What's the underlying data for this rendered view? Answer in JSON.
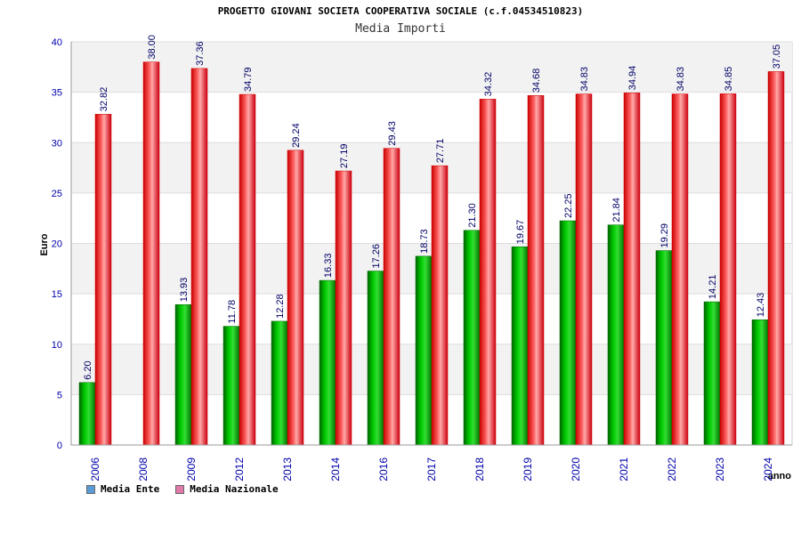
{
  "title": "PROGETTO GIOVANI SOCIETA COOPERATIVA SOCIALE (c.f.04534510823)",
  "subtitle": "Media Importi",
  "chart_data": {
    "type": "bar",
    "title": "PROGETTO GIOVANI SOCIETA COOPERATIVA SOCIALE (c.f.04534510823)",
    "subtitle": "Media Importi",
    "xlabel": "anno",
    "ylabel": "Euro",
    "ylim": [
      0,
      40
    ],
    "yticks": [
      0,
      5,
      10,
      15,
      20,
      25,
      30,
      35,
      40
    ],
    "categories": [
      "2006",
      "2008",
      "2009",
      "2012",
      "2013",
      "2014",
      "2016",
      "2017",
      "2018",
      "2019",
      "2020",
      "2021",
      "2022",
      "2023",
      "2024"
    ],
    "series": [
      {
        "name": "Media Ente",
        "color": "#00aa00",
        "values": [
          6.2,
          null,
          13.93,
          11.78,
          12.28,
          16.33,
          17.26,
          18.73,
          21.3,
          19.67,
          22.25,
          21.84,
          19.29,
          14.21,
          12.43
        ],
        "labels": [
          "6.20",
          "",
          "13.93",
          "11.78",
          "12.28",
          "16.33",
          "17.26",
          "18.73",
          "21.30",
          "19.67",
          "22.25",
          "21.84",
          "19.29",
          "14.21",
          "12.43"
        ]
      },
      {
        "name": "Media Nazionale",
        "color": "#e8202a",
        "values": [
          32.82,
          38.0,
          37.36,
          34.79,
          29.24,
          27.19,
          29.43,
          27.71,
          34.32,
          34.68,
          34.83,
          34.94,
          34.83,
          34.85,
          37.05
        ],
        "labels": [
          "32.82",
          "38.00",
          "37.36",
          "34.79",
          "29.24",
          "27.19",
          "29.43",
          "27.71",
          "34.32",
          "34.68",
          "34.83",
          "34.94",
          "34.83",
          "34.85",
          "37.05"
        ]
      }
    ],
    "legend": {
      "position": "bottom-left",
      "entries": [
        {
          "label": "Media Ente",
          "color": "#5b9bd5"
        },
        {
          "label": "Media Nazionale",
          "color": "#e07aa8"
        }
      ]
    },
    "grid": true
  }
}
